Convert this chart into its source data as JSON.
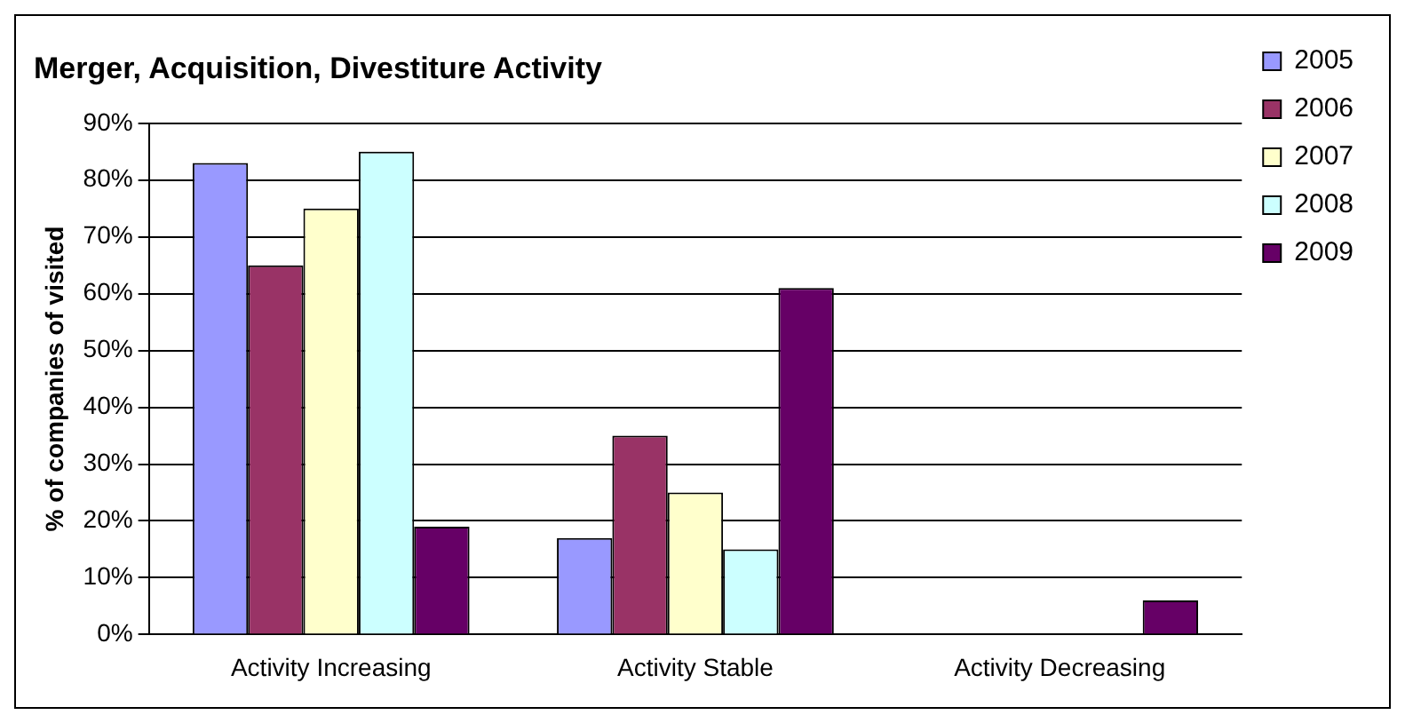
{
  "chart_data": {
    "type": "bar",
    "title": "Merger, Acquisition, Divestiture Activity",
    "ylabel": "% of companies of visited",
    "categories": [
      "Activity Increasing",
      "Activity Stable",
      "Activity Decreasing"
    ],
    "series": [
      {
        "name": "2005",
        "color": "#9999ff",
        "values": [
          83,
          17,
          0
        ]
      },
      {
        "name": "2006",
        "color": "#993366",
        "values": [
          65,
          35,
          0
        ]
      },
      {
        "name": "2007",
        "color": "#ffffcc",
        "values": [
          75,
          25,
          0
        ]
      },
      {
        "name": "2008",
        "color": "#ccffff",
        "values": [
          85,
          15,
          0
        ]
      },
      {
        "name": "2009",
        "color": "#660066",
        "values": [
          19,
          61,
          6
        ]
      }
    ],
    "ylim": [
      0,
      90
    ],
    "yticks": [
      {
        "value": 0,
        "label": "0%"
      },
      {
        "value": 10,
        "label": "10%"
      },
      {
        "value": 20,
        "label": "20%"
      },
      {
        "value": 30,
        "label": "30%"
      },
      {
        "value": 40,
        "label": "40%"
      },
      {
        "value": 50,
        "label": "50%"
      },
      {
        "value": 60,
        "label": "60%"
      },
      {
        "value": 70,
        "label": "70%"
      },
      {
        "value": 80,
        "label": "80%"
      },
      {
        "value": 90,
        "label": "90%"
      }
    ],
    "grid": "y",
    "legend": "top right"
  }
}
